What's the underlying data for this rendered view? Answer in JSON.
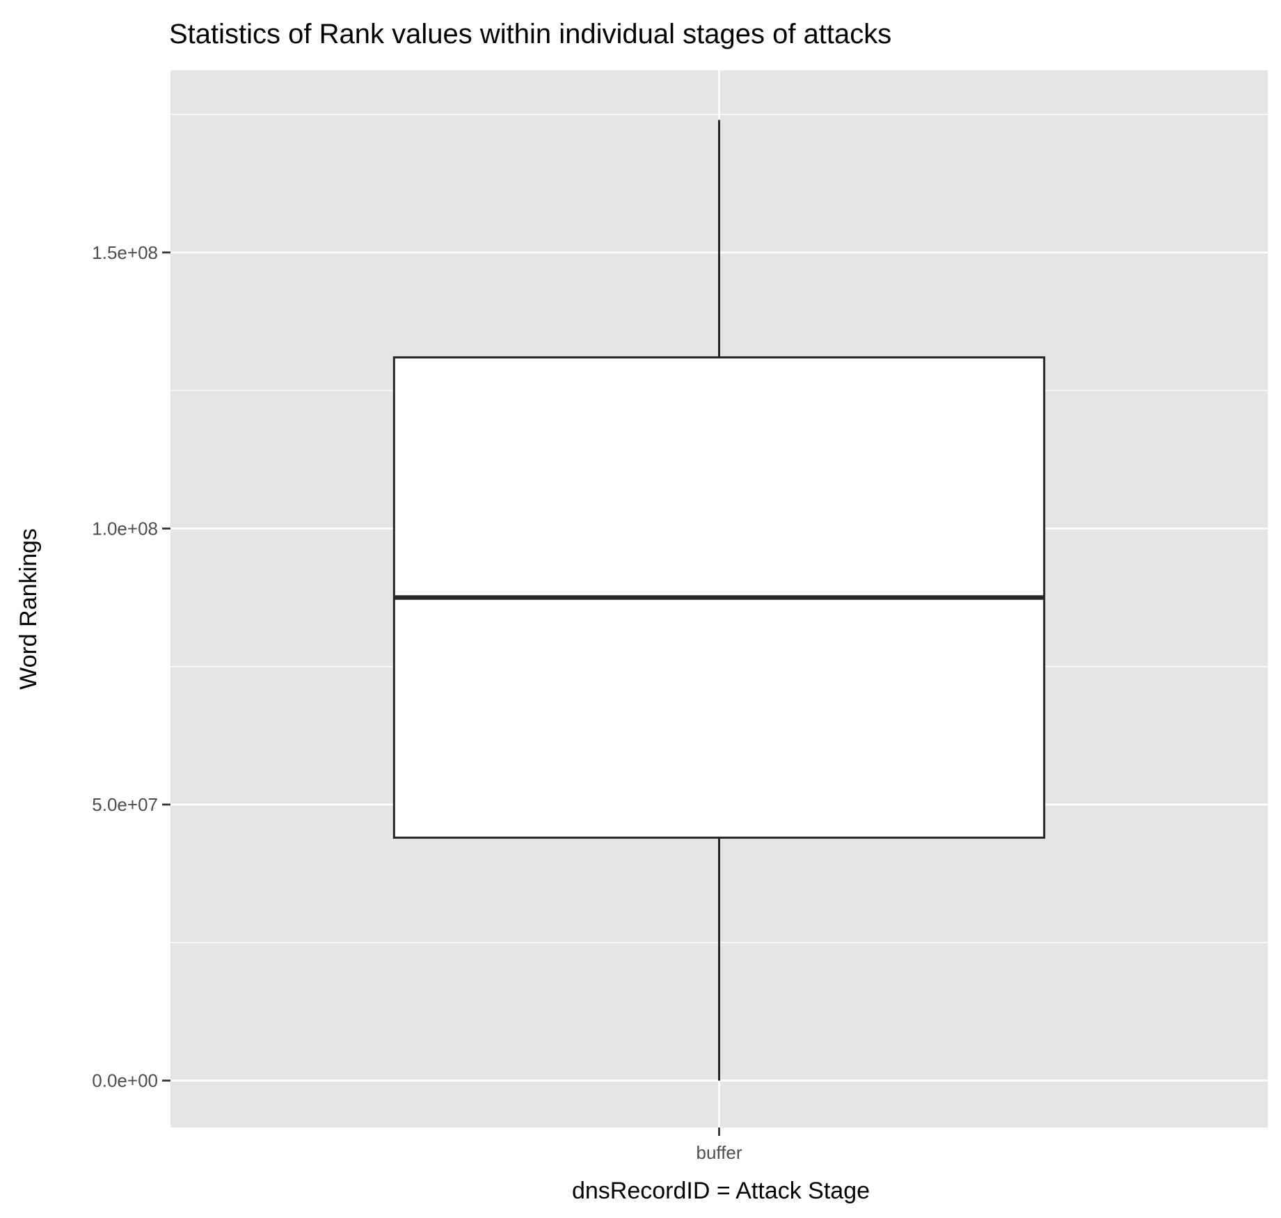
{
  "chart_data": {
    "type": "boxplot",
    "title": "Statistics of Rank values within individual stages of attacks",
    "xlabel": "dnsRecordID = Attack Stage",
    "ylabel": "Word Rankings",
    "categories": [
      "buffer"
    ],
    "boxes": [
      {
        "category": "buffer",
        "min": 0,
        "q1": 44000000,
        "median": 87500000,
        "q3": 131000000,
        "max": 174000000
      }
    ],
    "ylim": [
      -8500000,
      183000000
    ],
    "y_ticks": [
      0,
      50000000,
      100000000,
      150000000
    ],
    "y_tick_labels": [
      "0.0e+00",
      "5.0e+07",
      "1.0e+08",
      "1.5e+08"
    ],
    "grid": true,
    "legend": "none",
    "colors": {
      "panel_background": "#e5e5e5",
      "grid": "#ffffff",
      "box_fill": "#ffffff",
      "box_stroke": "#262626",
      "tick": "#333333"
    }
  }
}
